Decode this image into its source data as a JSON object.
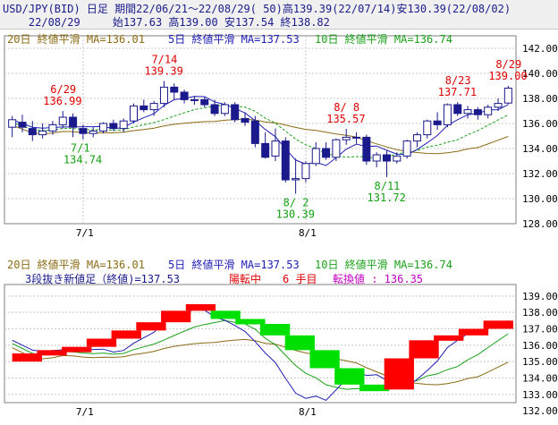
{
  "header": {
    "line1": "USD/JPY(BID) 日足 期間22/06/21～22/08/29( 50)高139.39(22/07/14)安130.39(22/08/02)",
    "line2": "    22/08/29     始137.63 高139.00 安137.54 終138.82"
  },
  "colors": {
    "ma20": "#8b6b14",
    "ma5": "#1e1eb4",
    "ma10": "#1aa01a",
    "up_candle": "#ffffff",
    "down_candle": "#1a1a8c",
    "annot_high": "#e00000",
    "annot_low": "#13a013",
    "kagi_up": "#ff0000",
    "kagi_down": "#00e000"
  },
  "chart_data": [
    {
      "type": "candlestick",
      "legend": [
        {
          "label": "20日 終値平滑 MA=136.01",
          "color": "ma20"
        },
        {
          "label": "5日 終値平滑 MA=137.53",
          "color": "ma5"
        },
        {
          "label": "10日 終値平滑 MA=136.74",
          "color": "ma10"
        }
      ],
      "ylim": [
        128,
        143
      ],
      "yticks": [
        "142.00",
        "140.00",
        "138.00",
        "136.00",
        "134.00",
        "132.00",
        "130.00",
        "128.00"
      ],
      "xticks": [
        "7/1",
        "8/1"
      ],
      "candles": [
        {
          "o": 135.7,
          "h": 136.6,
          "l": 134.9,
          "c": 136.3
        },
        {
          "o": 136.1,
          "h": 136.7,
          "l": 135.3,
          "c": 135.7
        },
        {
          "o": 135.6,
          "h": 136.2,
          "l": 134.6,
          "c": 135.1
        },
        {
          "o": 135.1,
          "h": 136.0,
          "l": 134.8,
          "c": 135.4
        },
        {
          "o": 135.4,
          "h": 136.2,
          "l": 135.1,
          "c": 135.9
        },
        {
          "o": 135.9,
          "h": 136.99,
          "l": 135.6,
          "c": 136.5
        },
        {
          "o": 136.5,
          "h": 136.8,
          "l": 134.9,
          "c": 135.7
        },
        {
          "o": 135.6,
          "h": 135.9,
          "l": 134.74,
          "c": 135.2
        },
        {
          "o": 135.2,
          "h": 135.7,
          "l": 134.9,
          "c": 135.4
        },
        {
          "o": 135.4,
          "h": 136.1,
          "l": 135.2,
          "c": 136.0
        },
        {
          "o": 136.0,
          "h": 136.3,
          "l": 135.4,
          "c": 135.6
        },
        {
          "o": 135.6,
          "h": 136.4,
          "l": 135.3,
          "c": 136.2
        },
        {
          "o": 136.2,
          "h": 137.6,
          "l": 136.0,
          "c": 137.4
        },
        {
          "o": 137.4,
          "h": 137.9,
          "l": 136.9,
          "c": 137.1
        },
        {
          "o": 137.1,
          "h": 137.8,
          "l": 136.6,
          "c": 137.6
        },
        {
          "o": 137.6,
          "h": 139.39,
          "l": 137.3,
          "c": 138.9
        },
        {
          "o": 138.9,
          "h": 139.2,
          "l": 137.9,
          "c": 138.5
        },
        {
          "o": 138.5,
          "h": 138.7,
          "l": 137.6,
          "c": 137.9
        },
        {
          "o": 137.9,
          "h": 138.2,
          "l": 137.5,
          "c": 137.9
        },
        {
          "o": 137.9,
          "h": 138.1,
          "l": 137.3,
          "c": 137.5
        },
        {
          "o": 137.5,
          "h": 137.9,
          "l": 136.6,
          "c": 136.8
        },
        {
          "o": 136.8,
          "h": 137.7,
          "l": 136.6,
          "c": 137.5
        },
        {
          "o": 137.5,
          "h": 137.7,
          "l": 136.1,
          "c": 136.3
        },
        {
          "o": 136.4,
          "h": 136.9,
          "l": 135.8,
          "c": 136.1
        },
        {
          "o": 136.2,
          "h": 136.6,
          "l": 134.1,
          "c": 134.4
        },
        {
          "o": 134.4,
          "h": 135.3,
          "l": 133.2,
          "c": 133.3
        },
        {
          "o": 133.4,
          "h": 135.6,
          "l": 133.0,
          "c": 134.6
        },
        {
          "o": 134.6,
          "h": 134.9,
          "l": 131.3,
          "c": 131.5
        },
        {
          "o": 131.5,
          "h": 133.2,
          "l": 130.39,
          "c": 131.6
        },
        {
          "o": 131.6,
          "h": 133.0,
          "l": 131.3,
          "c": 132.8
        },
        {
          "o": 132.8,
          "h": 134.5,
          "l": 132.6,
          "c": 134.0
        },
        {
          "o": 134.0,
          "h": 134.5,
          "l": 133.1,
          "c": 133.3
        },
        {
          "o": 133.3,
          "h": 134.8,
          "l": 133.0,
          "c": 134.7
        },
        {
          "o": 134.7,
          "h": 135.57,
          "l": 134.3,
          "c": 134.9
        },
        {
          "o": 134.9,
          "h": 135.3,
          "l": 134.4,
          "c": 134.9
        },
        {
          "o": 134.9,
          "h": 135.1,
          "l": 132.7,
          "c": 133.0
        },
        {
          "o": 133.0,
          "h": 133.7,
          "l": 132.5,
          "c": 133.5
        },
        {
          "o": 133.5,
          "h": 133.8,
          "l": 131.72,
          "c": 133.0
        },
        {
          "o": 133.0,
          "h": 133.7,
          "l": 132.8,
          "c": 133.4
        },
        {
          "o": 133.4,
          "h": 134.7,
          "l": 133.2,
          "c": 134.6
        },
        {
          "o": 134.6,
          "h": 135.3,
          "l": 134.1,
          "c": 135.1
        },
        {
          "o": 135.1,
          "h": 136.3,
          "l": 134.8,
          "c": 136.2
        },
        {
          "o": 136.2,
          "h": 136.9,
          "l": 135.5,
          "c": 135.9
        },
        {
          "o": 135.9,
          "h": 137.6,
          "l": 135.7,
          "c": 137.5
        },
        {
          "o": 137.5,
          "h": 137.71,
          "l": 136.6,
          "c": 136.8
        },
        {
          "o": 136.8,
          "h": 137.4,
          "l": 136.4,
          "c": 137.1
        },
        {
          "o": 137.1,
          "h": 137.3,
          "l": 136.3,
          "c": 136.7
        },
        {
          "o": 136.7,
          "h": 137.5,
          "l": 136.4,
          "c": 137.3
        },
        {
          "o": 137.3,
          "h": 138.0,
          "l": 137.0,
          "c": 137.6
        },
        {
          "o": 137.63,
          "h": 139.0,
          "l": 137.54,
          "c": 138.82
        }
      ],
      "annotations": [
        {
          "text": "6/29\n136.99",
          "kind": "high",
          "index": 5,
          "price": 136.99
        },
        {
          "text": "7/1\n134.74",
          "kind": "low",
          "index": 7,
          "price": 134.74
        },
        {
          "text": "7/14\n139.39",
          "kind": "high",
          "index": 15,
          "price": 139.39
        },
        {
          "text": "8/ 8\n135.57",
          "kind": "high",
          "index": 33,
          "price": 135.57
        },
        {
          "text": "8/ 2\n130.39",
          "kind": "low",
          "index": 28,
          "price": 130.39
        },
        {
          "text": "8/11\n131.72",
          "kind": "low",
          "index": 37,
          "price": 131.72
        },
        {
          "text": "8/23\n137.71",
          "kind": "high",
          "index": 44,
          "price": 137.71
        },
        {
          "text": "8/29\n139.00",
          "kind": "high",
          "index": 49,
          "price": 139.0
        }
      ]
    },
    {
      "type": "three-line-break",
      "legend": [
        {
          "label": "20日 終値平滑 MA=136.01",
          "color": "ma20"
        },
        {
          "label": "5日 終値平滑 MA=137.53",
          "color": "ma5"
        },
        {
          "label": "10日 終値平滑 MA=136.74",
          "color": "ma10"
        }
      ],
      "info": {
        "prefix": "3段抜き新値足（終値)=137.53",
        "trend": "陽転中",
        "step": "6 手目",
        "reversal": "転換値 : 136.35"
      },
      "ylim": [
        132.5,
        139.7
      ],
      "yticks": [
        "139.00",
        "138.00",
        "137.00",
        "136.00",
        "135.00",
        "134.00",
        "133.00",
        "132.00"
      ],
      "xticks": [
        "7/1",
        "8/1"
      ],
      "blocks": [
        {
          "d": "up",
          "lo": 135.0,
          "hi": 135.5
        },
        {
          "d": "up",
          "lo": 135.5,
          "hi": 135.7
        },
        {
          "d": "up",
          "lo": 135.7,
          "hi": 135.9
        },
        {
          "d": "up",
          "lo": 135.9,
          "hi": 136.4
        },
        {
          "d": "up",
          "lo": 136.4,
          "hi": 136.9
        },
        {
          "d": "up",
          "lo": 136.9,
          "hi": 137.4
        },
        {
          "d": "up",
          "lo": 137.4,
          "hi": 138.1
        },
        {
          "d": "up",
          "lo": 138.1,
          "hi": 138.5
        },
        {
          "d": "down",
          "lo": 137.6,
          "hi": 138.1
        },
        {
          "d": "down",
          "lo": 137.3,
          "hi": 137.6
        },
        {
          "d": "down",
          "lo": 136.6,
          "hi": 137.3
        },
        {
          "d": "down",
          "lo": 135.7,
          "hi": 136.6
        },
        {
          "d": "down",
          "lo": 134.6,
          "hi": 135.7
        },
        {
          "d": "down",
          "lo": 133.6,
          "hi": 134.6
        },
        {
          "d": "down",
          "lo": 133.2,
          "hi": 133.6
        },
        {
          "d": "up",
          "lo": 133.3,
          "hi": 135.2
        },
        {
          "d": "up",
          "lo": 135.2,
          "hi": 136.3
        },
        {
          "d": "up",
          "lo": 136.3,
          "hi": 136.6
        },
        {
          "d": "up",
          "lo": 136.6,
          "hi": 137.0
        },
        {
          "d": "up",
          "lo": 137.0,
          "hi": 137.5
        }
      ]
    }
  ]
}
